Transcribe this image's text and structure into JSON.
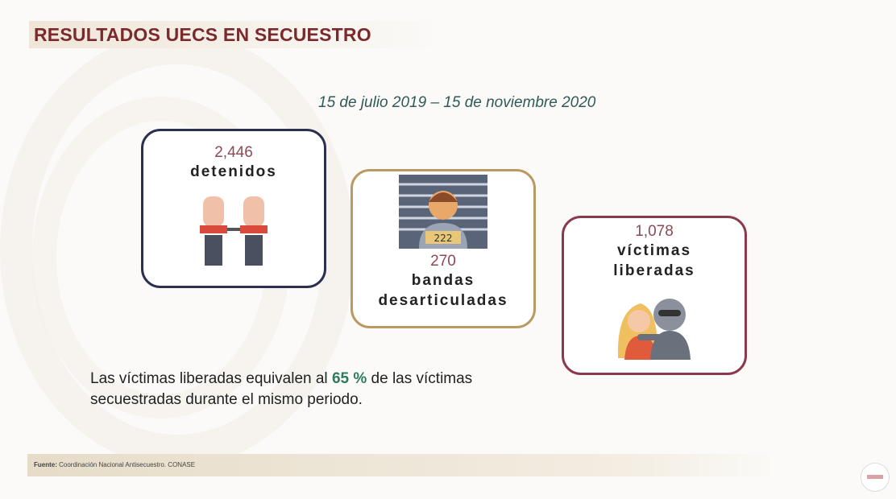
{
  "title": "RESULTADOS UECS EN SECUESTRO",
  "period": "15 de julio 2019 – 15 de noviembre 2020",
  "cards": [
    {
      "value": "2,446",
      "label": "detenidos",
      "icon": "handcuffed-hands-icon"
    },
    {
      "value": "270",
      "label_line1": "bandas",
      "label_line2": "desarticuladas",
      "icon": "prisoner-mugshot-icon"
    },
    {
      "value": "1,078",
      "label_line1": "víctimas",
      "label_line2": "liberadas",
      "icon": "kidnapper-hostage-icon"
    }
  ],
  "note": {
    "before": "Las víctimas liberadas equivalen al ",
    "highlight": "65 %",
    "after": " de las víctimas secuestradas durante el mismo periodo."
  },
  "footer": {
    "label": "Fuente:",
    "text": " Coordinación Nacional Antisecuestro. CONASE"
  },
  "colors": {
    "title": "#7a2a2c",
    "highlight": "#2e7a5c",
    "card1_border": "#2c3050",
    "card2_border": "#b99a62",
    "card3_border": "#8a3a4c"
  }
}
